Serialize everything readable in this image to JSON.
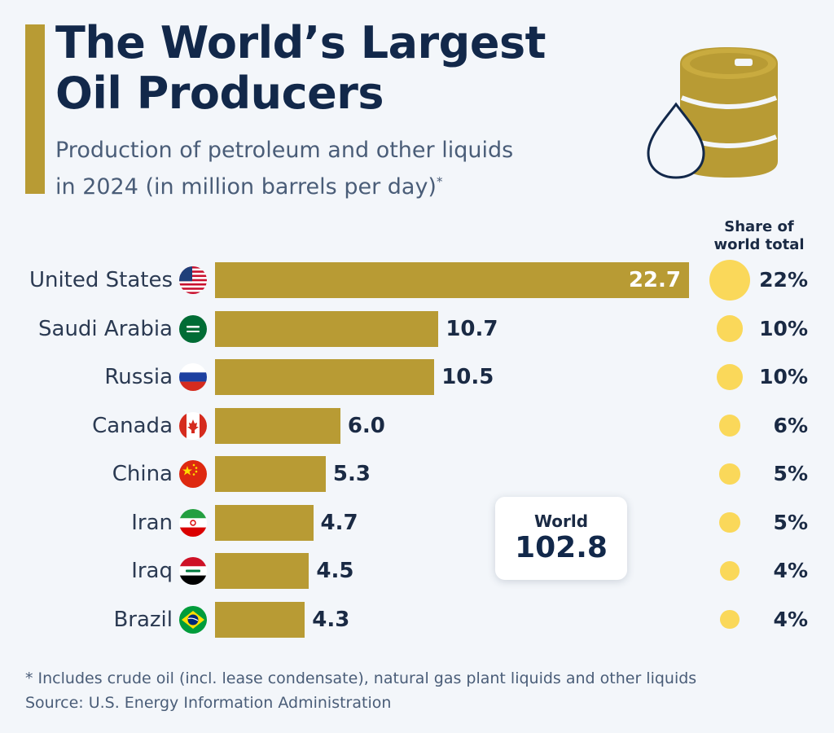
{
  "header": {
    "title_line1": "The World’s Largest",
    "title_line2": "Oil Producers",
    "subtitle_line1": "Production of petroleum and other liquids",
    "subtitle_line2": "in 2024 (in million barrels per day)",
    "subtitle_mark": "*"
  },
  "share_header": {
    "line1": "Share of",
    "line2": "world total"
  },
  "world_box": {
    "label": "World",
    "value": "102.8"
  },
  "footer": {
    "footnote": "* Includes crude oil (incl. lease condensate), natural gas plant liquids and other liquids",
    "source": "Source: U.S. Energy Information Administration"
  },
  "colors": {
    "bar": "#b89b34",
    "bubble": "#fad85a",
    "title": "#12284a"
  },
  "chart_data": {
    "type": "bar",
    "orientation": "horizontal",
    "categories": [
      "United States",
      "Saudi Arabia",
      "Russia",
      "Canada",
      "China",
      "Iran",
      "Iraq",
      "Brazil"
    ],
    "values": [
      22.7,
      10.7,
      10.5,
      6.0,
      5.3,
      4.7,
      4.5,
      4.3
    ],
    "value_labels": [
      "22.7",
      "10.7",
      "10.5",
      "6.0",
      "5.3",
      "4.7",
      "4.5",
      "4.3"
    ],
    "share_values": [
      22,
      10,
      10,
      6,
      5,
      5,
      4,
      4
    ],
    "share_labels": [
      "22%",
      "10%",
      "10%",
      "6%",
      "5%",
      "5%",
      "4%",
      "4%"
    ],
    "flags": [
      "us-flag-icon",
      "saudi-arabia-flag-icon",
      "russia-flag-icon",
      "canada-flag-icon",
      "china-flag-icon",
      "iran-flag-icon",
      "iraq-flag-icon",
      "brazil-flag-icon"
    ],
    "xlim": [
      0,
      22.7
    ],
    "world_total": 102.8
  }
}
